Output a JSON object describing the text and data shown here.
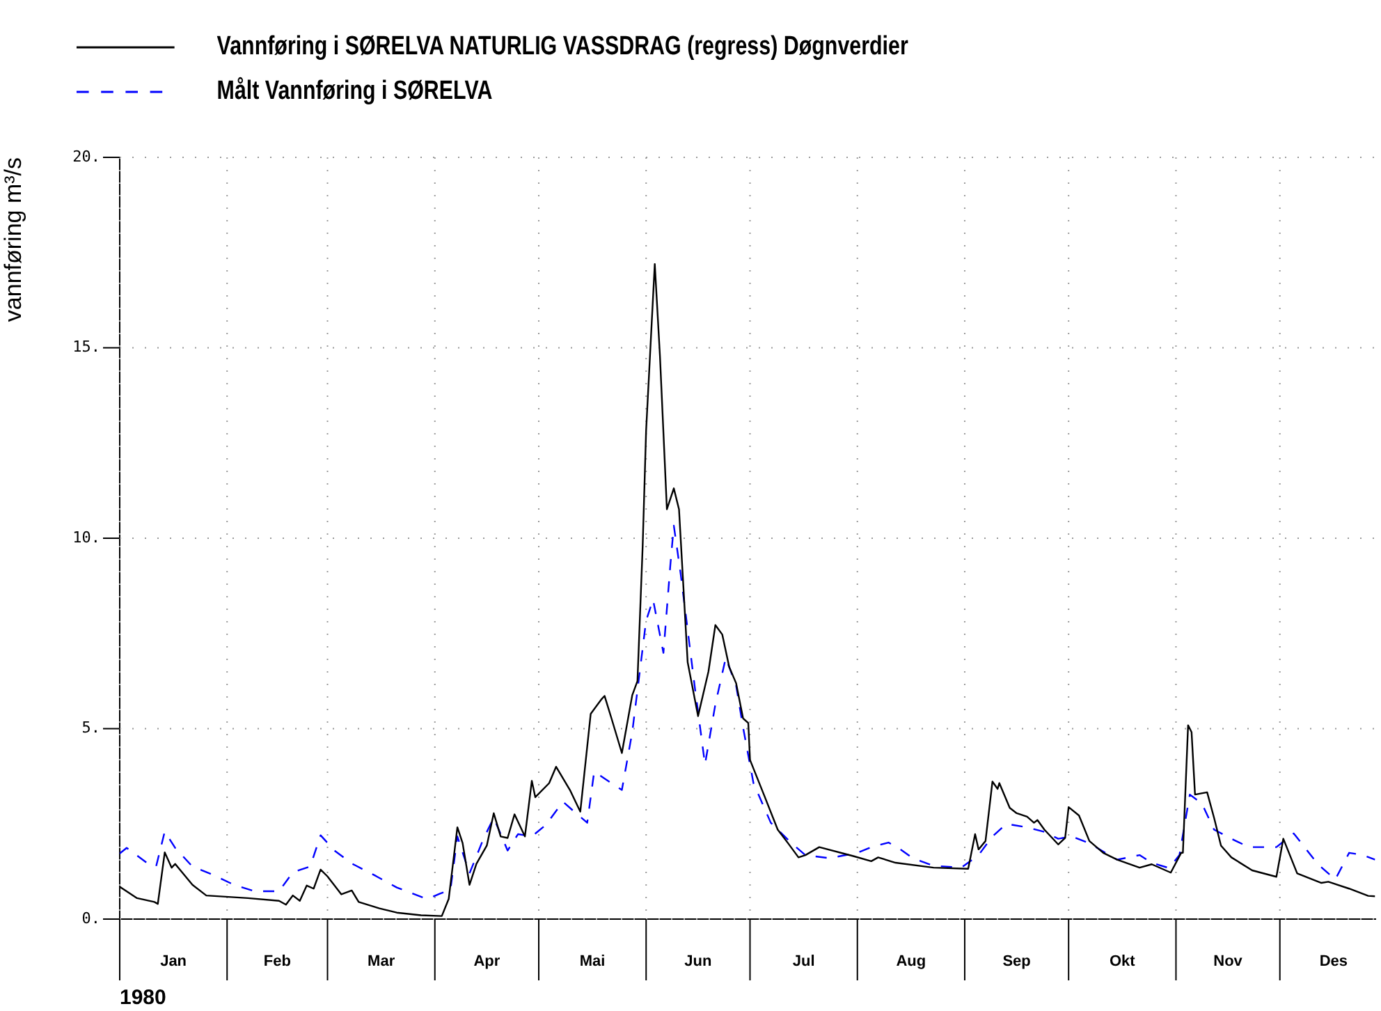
{
  "chart_data": {
    "type": "line",
    "ylabel": "vannføring m³/s",
    "xlabel": "1980",
    "xlim": [
      "1980-01-01",
      "1980-12-28T12:00"
    ],
    "xticks": [
      {
        "value": "1980-01-01",
        "label": null
      },
      {
        "value": "1980-01-16T12:00",
        "label": "Jan"
      },
      {
        "value": "1980-02-01",
        "label": null
      },
      {
        "value": "1980-02-15T12:00",
        "label": "Feb"
      },
      {
        "value": "1980-03-01",
        "label": null
      },
      {
        "value": "1980-03-16T12:00",
        "label": "Mar"
      },
      {
        "value": "1980-04-01",
        "label": null
      },
      {
        "value": "1980-04-16",
        "label": "Apr"
      },
      {
        "value": "1980-05-01",
        "label": null
      },
      {
        "value": "1980-05-16T12:00",
        "label": "Mai"
      },
      {
        "value": "1980-06-01",
        "label": null
      },
      {
        "value": "1980-06-16",
        "label": "Jun"
      },
      {
        "value": "1980-07-01",
        "label": null
      },
      {
        "value": "1980-07-16T12:00",
        "label": "Jul"
      },
      {
        "value": "1980-08-01",
        "label": null
      },
      {
        "value": "1980-08-16T12:00",
        "label": "Aug"
      },
      {
        "value": "1980-09-01",
        "label": null
      },
      {
        "value": "1980-09-16",
        "label": "Sep"
      },
      {
        "value": "1980-10-01",
        "label": null
      },
      {
        "value": "1980-10-16T12:00",
        "label": "Okt"
      },
      {
        "value": "1980-11-01",
        "label": null
      },
      {
        "value": "1980-11-16",
        "label": "Nov"
      },
      {
        "value": "1980-12-01",
        "label": null
      },
      {
        "value": "1980-12-16T12:00",
        "label": "Des"
      }
    ],
    "ylim": [
      0,
      20
    ],
    "yticks": [
      {
        "value": 0,
        "label": "0."
      },
      {
        "value": 5,
        "label": "5."
      },
      {
        "value": 10,
        "label": "10."
      },
      {
        "value": 15,
        "label": "15."
      },
      {
        "value": 20,
        "label": "20."
      }
    ],
    "grid": true,
    "legend": "top left",
    "series": [
      {
        "name": "Vannføring i SØRELVA NATURLIG VASSDRAG (regress) Døgnverdier",
        "color": "#000000",
        "line_style": "solid",
        "x": [
          "1980-01-01",
          "1980-01-06",
          "1980-01-11",
          "1980-01-12",
          "1980-01-14",
          "1980-01-16",
          "1980-01-17",
          "1980-01-22",
          "1980-01-26",
          "1980-02-07",
          "1980-02-16",
          "1980-02-18",
          "1980-02-20",
          "1980-02-22",
          "1980-02-24",
          "1980-02-26",
          "1980-02-28",
          "1980-03-01",
          "1980-03-05",
          "1980-03-08",
          "1980-03-10",
          "1980-03-16",
          "1980-03-21",
          "1980-03-28",
          "1980-04-03",
          "1980-04-05",
          "1980-04-07T12:00",
          "1980-04-09",
          "1980-04-11",
          "1980-04-13",
          "1980-04-16",
          "1980-04-18",
          "1980-04-20",
          "1980-04-22",
          "1980-04-24",
          "1980-04-27",
          "1980-04-29",
          "1980-04-30",
          "1980-05-04",
          "1980-05-06",
          "1980-05-10",
          "1980-05-13",
          "1980-05-16",
          "1980-05-19",
          "1980-05-20",
          "1980-05-22",
          "1980-05-25",
          "1980-05-28",
          "1980-05-29T12:00",
          "1980-05-31",
          "1980-06-01",
          "1980-06-03T12:00",
          "1980-06-05",
          "1980-06-07",
          "1980-06-09",
          "1980-06-10T12:00",
          "1980-06-13",
          "1980-06-16",
          "1980-06-19",
          "1980-06-21",
          "1980-06-23",
          "1980-06-25",
          "1980-06-27",
          "1980-06-29",
          "1980-06-30T12:00",
          "1980-07-01",
          "1980-07-05",
          "1980-07-09",
          "1980-07-12",
          "1980-07-15",
          "1980-07-17",
          "1980-07-21",
          "1980-07-31",
          "1980-08-05",
          "1980-08-07",
          "1980-08-12",
          "1980-08-23",
          "1980-09-02",
          "1980-09-04",
          "1980-09-05",
          "1980-09-07",
          "1980-09-09",
          "1980-09-10T12:00",
          "1980-09-11",
          "1980-09-14",
          "1980-09-16",
          "1980-09-19",
          "1980-09-21",
          "1980-09-22",
          "1980-09-24",
          "1980-09-28",
          "1980-09-30",
          "1980-10-01",
          "1980-10-04",
          "1980-10-07",
          "1980-10-11",
          "1980-10-15",
          "1980-10-21T12:00",
          "1980-10-25",
          "1980-10-30T12:00",
          "1980-11-02T12:00",
          "1980-11-03",
          "1980-11-04T12:00",
          "1980-11-05T12:00",
          "1980-11-06T12:00",
          "1980-11-10",
          "1980-11-12",
          "1980-11-14",
          "1980-11-17",
          "1980-11-23",
          "1980-11-30",
          "1980-12-02",
          "1980-12-06",
          "1980-12-13",
          "1980-12-15",
          "1980-12-21",
          "1980-12-26T12:00",
          "1980-12-28T12:00"
        ],
        "values": [
          0.85,
          0.55,
          0.45,
          0.4,
          1.75,
          1.35,
          1.45,
          0.9,
          0.62,
          0.55,
          0.48,
          0.38,
          0.62,
          0.48,
          0.88,
          0.8,
          1.3,
          1.12,
          0.65,
          0.75,
          0.45,
          0.28,
          0.17,
          0.1,
          0.08,
          0.53,
          2.41,
          2.0,
          0.9,
          1.45,
          1.93,
          2.78,
          2.17,
          2.13,
          2.75,
          2.17,
          3.63,
          3.2,
          3.57,
          4.0,
          3.39,
          2.82,
          5.39,
          5.76,
          5.86,
          5.27,
          4.36,
          5.88,
          6.25,
          9.78,
          12.83,
          17.2,
          14.78,
          10.76,
          11.31,
          10.76,
          6.74,
          5.33,
          6.5,
          7.72,
          7.47,
          6.62,
          6.19,
          5.27,
          5.15,
          4.18,
          3.27,
          2.35,
          1.99,
          1.62,
          1.68,
          1.89,
          1.65,
          1.52,
          1.62,
          1.48,
          1.35,
          1.32,
          2.23,
          1.83,
          2.05,
          3.61,
          3.42,
          3.57,
          2.92,
          2.78,
          2.69,
          2.53,
          2.6,
          2.35,
          1.96,
          2.13,
          2.94,
          2.72,
          2.05,
          1.74,
          1.56,
          1.35,
          1.44,
          1.22,
          1.74,
          1.74,
          5.09,
          4.91,
          3.27,
          3.33,
          2.66,
          1.93,
          1.62,
          1.28,
          1.11,
          2.11,
          1.2,
          0.95,
          0.98,
          0.8,
          0.61,
          0.6
        ]
      },
      {
        "name": "Målt Vannføring i SØRELVA",
        "color": "#0000ff",
        "line_style": "dashed",
        "x": [
          "1980-01-01",
          "1980-01-03",
          "1980-01-08T12:00",
          "1980-01-11T12:00",
          "1980-01-14",
          "1980-01-17",
          "1980-01-22",
          "1980-01-28",
          "1980-02-03",
          "1980-02-09",
          "1980-02-16",
          "1980-02-20",
          "1980-02-25",
          "1980-02-28",
          "1980-03-03",
          "1980-03-08",
          "1980-03-15",
          "1980-03-21",
          "1980-03-29",
          "1980-03-30",
          "1980-04-02T12:00",
          "1980-04-05T12:00",
          "1980-04-07T12:00",
          "1980-04-11",
          "1980-04-15",
          "1980-04-18",
          "1980-04-22",
          "1980-04-25",
          "1980-04-29",
          "1980-05-03",
          "1980-05-08",
          "1980-05-11",
          "1980-05-15",
          "1980-05-17",
          "1980-05-22",
          "1980-05-25",
          "1980-05-28",
          "1980-06-01",
          "1980-06-03",
          "1980-06-06",
          "1980-06-08",
          "1980-06-09",
          "1980-06-11",
          "1980-06-15",
          "1980-06-18",
          "1980-06-21",
          "1980-06-24",
          "1980-06-27",
          "1980-06-29",
          "1980-07-02",
          "1980-07-07",
          "1980-07-13",
          "1980-07-17",
          "1980-07-24",
          "1980-08-01",
          "1980-08-05",
          "1980-08-10",
          "1980-08-13",
          "1980-08-17",
          "1980-08-23",
          "1980-08-31",
          "1980-09-05",
          "1980-09-09",
          "1980-09-13",
          "1980-09-19",
          "1980-09-24",
          "1980-09-28",
          "1980-10-02",
          "1980-10-07",
          "1980-10-15",
          "1980-10-21T12:00",
          "1980-10-25",
          "1980-10-30",
          "1980-11-02",
          "1980-11-05",
          "1980-11-08T12:00",
          "1980-11-12",
          "1980-11-17",
          "1980-11-22",
          "1980-11-30",
          "1980-12-05",
          "1980-12-12",
          "1980-12-17",
          "1980-12-21",
          "1980-12-25",
          "1980-12-28T12:00"
        ],
        "values": [
          1.72,
          1.87,
          1.5,
          1.38,
          2.3,
          1.87,
          1.38,
          1.16,
          0.9,
          0.73,
          0.73,
          1.23,
          1.38,
          2.2,
          1.8,
          1.46,
          1.13,
          0.83,
          0.55,
          0.53,
          0.67,
          0.77,
          2.17,
          1.2,
          2.1,
          2.66,
          1.8,
          2.23,
          2.17,
          2.47,
          3.08,
          2.84,
          2.53,
          3.87,
          3.57,
          3.39,
          4.91,
          7.84,
          8.39,
          6.99,
          9.3,
          10.33,
          9.05,
          6.13,
          4.06,
          5.64,
          6.86,
          6.13,
          5.03,
          3.57,
          2.53,
          1.99,
          1.68,
          1.6,
          1.74,
          1.89,
          2.01,
          1.86,
          1.6,
          1.4,
          1.35,
          1.68,
          2.17,
          2.5,
          2.41,
          2.29,
          2.11,
          2.17,
          1.99,
          1.56,
          1.68,
          1.48,
          1.34,
          1.68,
          3.27,
          3.03,
          2.35,
          2.11,
          1.89,
          1.89,
          2.25,
          1.44,
          1.04,
          1.74,
          1.68,
          1.56
        ]
      }
    ]
  }
}
